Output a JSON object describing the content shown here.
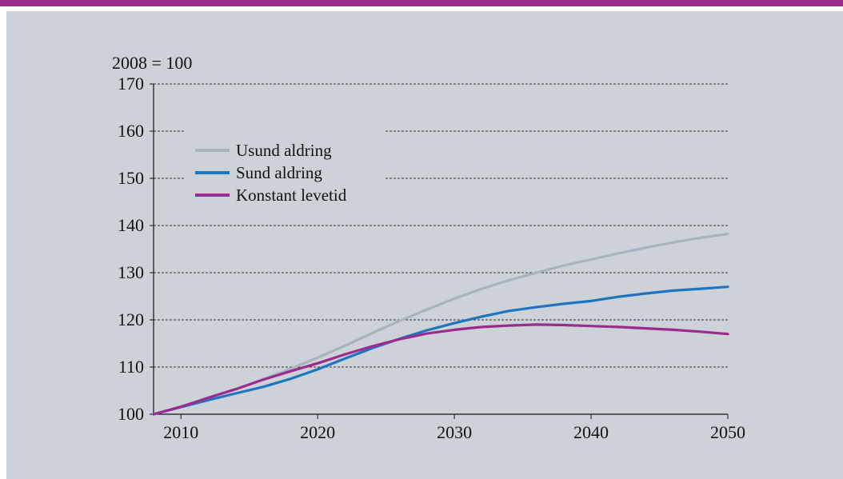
{
  "chart_data": {
    "type": "line",
    "y_unit_label": "2008 = 100",
    "xlim": [
      2008,
      2050
    ],
    "ylim": [
      100,
      170
    ],
    "x_ticks": [
      2010,
      2020,
      2030,
      2040,
      2050
    ],
    "y_ticks": [
      100,
      110,
      120,
      130,
      140,
      150,
      160,
      170
    ],
    "grid": "horizontal-dashed",
    "legend_position": "top-left",
    "x": [
      2008,
      2010,
      2012,
      2014,
      2016,
      2018,
      2020,
      2022,
      2024,
      2026,
      2028,
      2030,
      2032,
      2034,
      2036,
      2038,
      2040,
      2042,
      2044,
      2046,
      2048,
      2050
    ],
    "series": [
      {
        "name": "Usund aldring",
        "color": "#a7b3bf",
        "values": [
          100,
          101.6,
          103.4,
          105.3,
          107.4,
          109.6,
          112,
          114.5,
          117.2,
          119.8,
          122.2,
          124.5,
          126.6,
          128.4,
          130.0,
          131.5,
          132.8,
          134.1,
          135.3,
          136.4,
          137.4,
          138.2
        ]
      },
      {
        "name": "Sund aldring",
        "color": "#1f74c0",
        "values": [
          100,
          101.5,
          103.0,
          104.4,
          105.8,
          107.5,
          109.5,
          111.8,
          114.0,
          116.0,
          117.8,
          119.3,
          120.7,
          121.9,
          122.7,
          123.4,
          124.0,
          124.9,
          125.6,
          126.2,
          126.6,
          127.0
        ]
      },
      {
        "name": "Konstant levetid",
        "color": "#9c2b8f",
        "values": [
          100,
          101.6,
          103.5,
          105.3,
          107.3,
          109.1,
          110.8,
          112.7,
          114.4,
          115.9,
          117.1,
          117.9,
          118.5,
          118.8,
          119.0,
          118.9,
          118.7,
          118.5,
          118.2,
          117.9,
          117.5,
          117.0
        ]
      }
    ]
  }
}
